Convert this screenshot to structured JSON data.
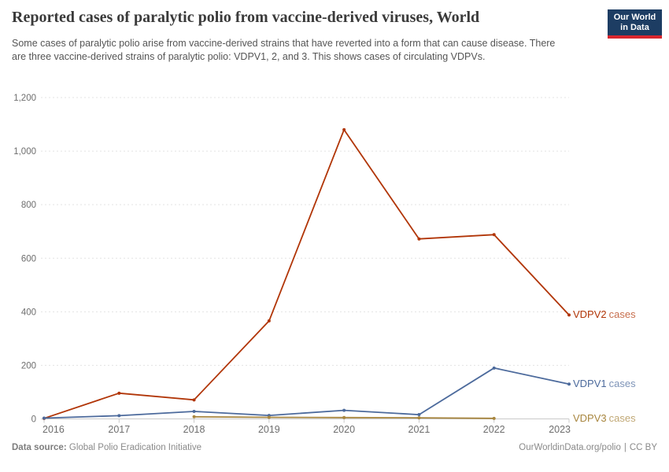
{
  "header": {
    "title": "Reported cases of paralytic polio from vaccine-derived viruses, World",
    "subtitle": "Some cases of paralytic polio arise from vaccine-derived strains that have reverted into a form that can cause disease. There are three vaccine-derived strains of paralytic polio: VDPV1, 2, and 3. This shows cases of circulating VDPVs.",
    "logo": {
      "line1": "Our World",
      "line2": "in Data",
      "bg_color": "#1d3d63",
      "accent_color": "#d9262e"
    }
  },
  "chart_data": {
    "type": "line",
    "title": "Reported cases of paralytic polio from vaccine-derived viruses, World",
    "x": [
      2016,
      2017,
      2018,
      2019,
      2020,
      2021,
      2022,
      2023
    ],
    "x_labels": [
      "2016",
      "2017",
      "2018",
      "2019",
      "2020",
      "2021",
      "2022",
      "2023"
    ],
    "ylim": [
      0,
      1200
    ],
    "yticks": [
      0,
      200,
      400,
      600,
      800,
      1000,
      1200
    ],
    "ytick_labels": [
      "0",
      "200",
      "400",
      "600",
      "800",
      "1,000",
      "1,200"
    ],
    "grid": "horizontal-dashed",
    "legend_position": "right-of-line-end",
    "series": [
      {
        "name": "VDPV2",
        "suffix": "cases",
        "color": "#b13507",
        "values": [
          2,
          96,
          71,
          366,
          1080,
          672,
          688,
          388
        ]
      },
      {
        "name": "VDPV1",
        "suffix": "cases",
        "color": "#4c6a9c",
        "values": [
          3,
          12,
          28,
          13,
          32,
          16,
          190,
          130
        ]
      },
      {
        "name": "VDPV3",
        "suffix": "cases",
        "color": "#a8863f",
        "values": [
          null,
          null,
          8,
          6,
          5,
          4,
          2,
          null
        ]
      }
    ]
  },
  "footer": {
    "datasource_label": "Data source:",
    "datasource_value": "Global Polio Eradication Initiative",
    "url": "OurWorldinData.org/polio",
    "separator": "|",
    "license": "CC BY"
  }
}
